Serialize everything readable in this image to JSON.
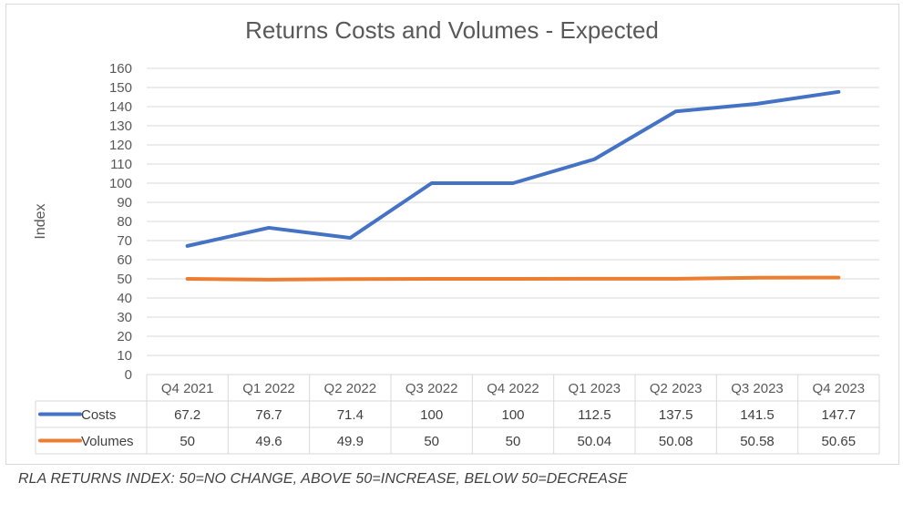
{
  "chart_data": {
    "type": "line",
    "title": "Returns Costs and Volumes - Expected",
    "ylabel": "Index",
    "ylim": [
      0,
      160
    ],
    "ystep": 10,
    "grid": true,
    "legend": "data-table",
    "categories": [
      "Q4 2021",
      "Q1 2022",
      "Q2 2022",
      "Q3 2022",
      "Q4 2022",
      "Q1 2023",
      "Q2 2023",
      "Q3 2023",
      "Q4 2023"
    ],
    "series": [
      {
        "name": "Costs",
        "color": "#4472c4",
        "values": [
          67.2,
          76.7,
          71.4,
          100,
          100,
          112.5,
          137.5,
          141.5,
          147.7
        ],
        "labels": [
          "67.2",
          "76.7",
          "71.4",
          "100",
          "100",
          "112.5",
          "137.5",
          "141.5",
          "147.7"
        ]
      },
      {
        "name": "Volumes",
        "color": "#ed7d31",
        "values": [
          50,
          49.6,
          49.9,
          50,
          50,
          50.04,
          50.08,
          50.58,
          50.65
        ],
        "labels": [
          "50",
          "49.6",
          "49.9",
          "50",
          "50",
          "50.04",
          "50.08",
          "50.58",
          "50.65"
        ]
      }
    ]
  },
  "footnote": "RLA RETURNS INDEX: 50=NO CHANGE, ABOVE 50=INCREASE, BELOW 50=DECREASE"
}
